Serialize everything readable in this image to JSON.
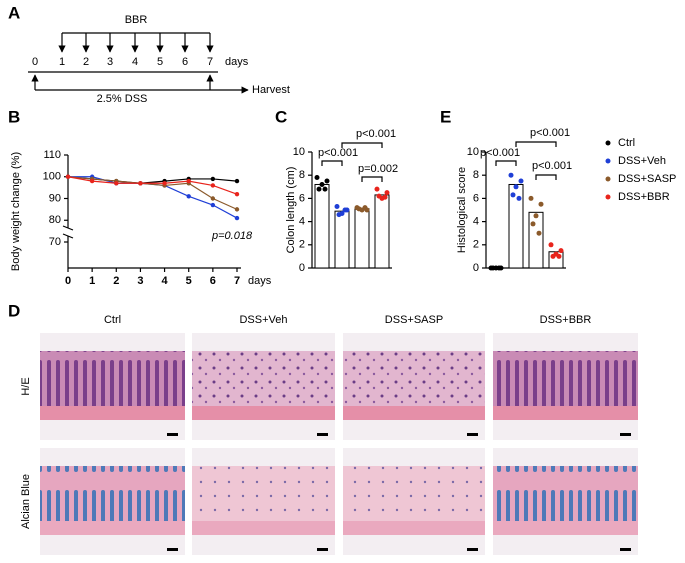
{
  "panel_labels": [
    "A",
    "B",
    "C",
    "D",
    "E"
  ],
  "timeline": {
    "treatment": "BBR",
    "days": [
      "0",
      "1",
      "2",
      "3",
      "4",
      "5",
      "6",
      "7"
    ],
    "days_label": "days",
    "dss": "2.5% DSS",
    "harvest": "Harvest"
  },
  "chart_data": [
    {
      "type": "line",
      "y_label": "Body weight change (%)",
      "x_label": "days",
      "x": [
        0,
        1,
        2,
        3,
        4,
        5,
        6,
        7
      ],
      "xlim": [
        0,
        7
      ],
      "xticks": [
        0,
        1,
        2,
        3,
        4,
        5,
        6,
        7
      ],
      "ylim": [
        70,
        110
      ],
      "yticks": [
        70,
        80,
        90,
        100,
        110
      ],
      "axis_break": true,
      "series": [
        {
          "name": "Ctrl",
          "color": "#000000",
          "values": [
            100,
            99,
            98,
            97,
            98,
            99,
            99,
            98
          ]
        },
        {
          "name": "DSS+Veh",
          "color": "#1f3fd6",
          "values": [
            100,
            100,
            97,
            97,
            96,
            91,
            87,
            81
          ]
        },
        {
          "name": "DSS+SASP",
          "color": "#8b5a2b",
          "values": [
            100,
            99,
            98,
            97,
            96,
            97,
            90,
            85
          ]
        },
        {
          "name": "DSS+BBR",
          "color": "#e8241c",
          "values": [
            100,
            98,
            97,
            97,
            97,
            98,
            96,
            92
          ]
        }
      ],
      "annotations": [
        "p=0.018"
      ]
    },
    {
      "type": "bar",
      "y_label": "Colon length (cm)",
      "categories": [
        null,
        null,
        null,
        null
      ],
      "values": [
        7.2,
        4.9,
        5.1,
        6.3
      ],
      "colors": [
        "#000000",
        "#1f3fd6",
        "#8b5a2b",
        "#e8241c"
      ],
      "points": [
        [
          7.8,
          7.5,
          7.2,
          6.8,
          6.8
        ],
        [
          5.3,
          5.0,
          4.7,
          4.6,
          5.0
        ],
        [
          5.2,
          5.0,
          5.0,
          5.1,
          5.2
        ],
        [
          6.8,
          6.5,
          6.0,
          6.2,
          6.1
        ]
      ],
      "ylim": [
        0,
        10
      ],
      "yticks": [
        0,
        2,
        4,
        6,
        8,
        10
      ],
      "annotations": [
        "p<0.001",
        "p<0.001",
        "p=0.002"
      ]
    },
    {
      "type": "bar",
      "y_label": "Histological score",
      "categories": [
        null,
        null,
        null,
        null
      ],
      "values": [
        0,
        7.2,
        4.8,
        1.4
      ],
      "colors": [
        "#000000",
        "#1f3fd6",
        "#8b5a2b",
        "#e8241c"
      ],
      "points": [
        [
          0,
          0,
          0,
          0,
          0
        ],
        [
          8,
          7.5,
          7,
          6.3,
          6
        ],
        [
          6,
          5.5,
          4.5,
          3.8,
          3
        ],
        [
          2,
          1.5,
          1.2,
          1,
          1
        ]
      ],
      "ylim": [
        0,
        10
      ],
      "yticks": [
        0,
        2,
        4,
        6,
        8,
        10
      ],
      "annotations": [
        "p<0.001",
        "p<0.001",
        "p<0.001"
      ]
    }
  ],
  "histology": {
    "columns": [
      "Ctrl",
      "DSS+Veh",
      "DSS+SASP",
      "DSS+BBR"
    ],
    "rows": [
      "H/E",
      "Alcian Blue"
    ]
  }
}
